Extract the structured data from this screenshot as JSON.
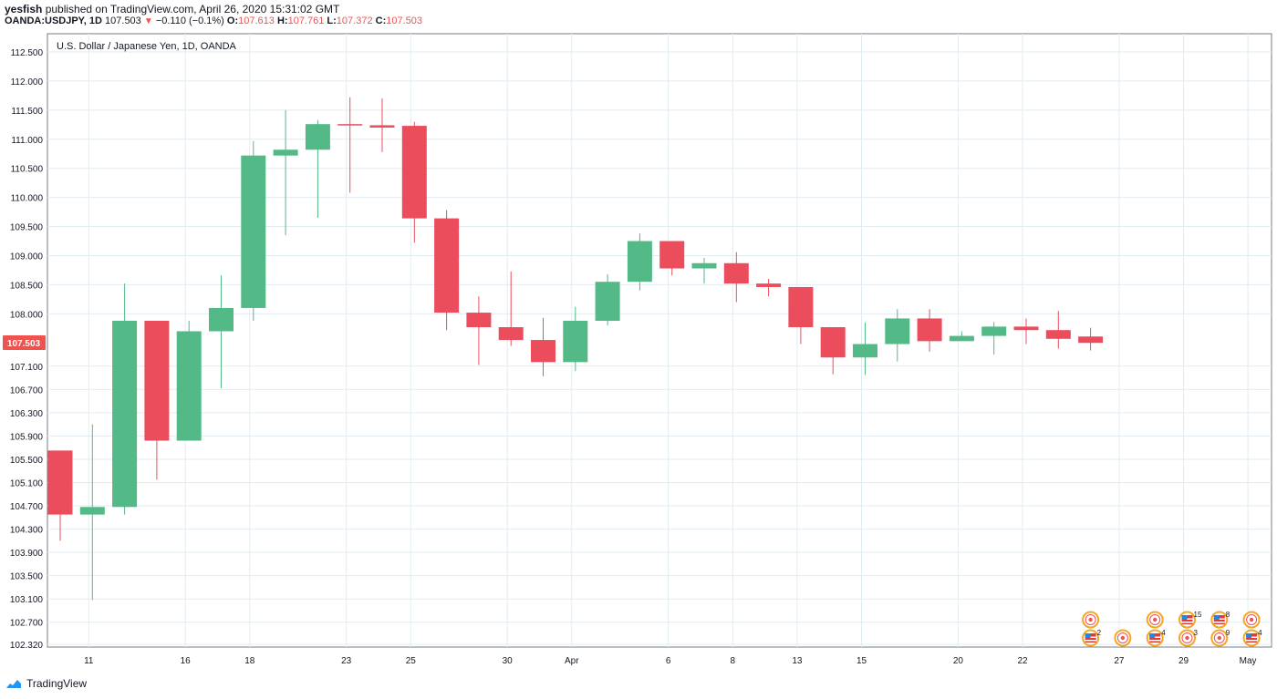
{
  "header": {
    "author": "yesfish",
    "published_text": "published on TradingView.com, April 26, 2020 15:31:02 GMT",
    "symbol": "OANDA:USDJPY, 1D",
    "last": "107.503",
    "change": "−0.110 (−0.1%)",
    "o_label": "O:",
    "o_value": "107.613",
    "h_label": "H:",
    "h_value": "107.761",
    "l_label": "L:",
    "l_value": "107.372",
    "c_label": "C:",
    "c_value": "107.503"
  },
  "footer": {
    "brand": "TradingView"
  },
  "colors": {
    "up": "#53b987",
    "down": "#eb4d5c",
    "grid": "#e1ecf2",
    "price_tag": "#ef5350",
    "event_ring": "#f5a623"
  },
  "chart_data": {
    "type": "candlestick",
    "title": "U.S. Dollar / Japanese Yen, 1D, OANDA",
    "last_price_label": "107.503",
    "ylim": [
      102.32,
      112.7
    ],
    "y_ticks": [
      "112.500",
      "112.000",
      "111.500",
      "111.000",
      "110.500",
      "110.000",
      "109.500",
      "109.000",
      "108.500",
      "108.000",
      "107.100",
      "106.700",
      "106.300",
      "105.900",
      "105.500",
      "105.100",
      "104.700",
      "104.300",
      "103.900",
      "103.500",
      "103.100",
      "102.700",
      "102.320"
    ],
    "x_ticks": [
      "11",
      "16",
      "18",
      "23",
      "25",
      "30",
      "Apr",
      "6",
      "8",
      "13",
      "15",
      "20",
      "22",
      "27",
      "29",
      "May"
    ],
    "candles": [
      {
        "date": "2020-03-10",
        "o": 105.65,
        "h": 105.65,
        "l": 104.1,
        "c": 104.55
      },
      {
        "date": "2020-03-11",
        "o": 104.55,
        "h": 106.1,
        "l": 103.08,
        "c": 104.68
      },
      {
        "date": "2020-03-12",
        "o": 104.68,
        "h": 108.52,
        "l": 104.55,
        "c": 107.88
      },
      {
        "date": "2020-03-13",
        "o": 107.88,
        "h": 107.88,
        "l": 105.15,
        "c": 105.82
      },
      {
        "date": "2020-03-16",
        "o": 105.82,
        "h": 107.88,
        "l": 105.82,
        "c": 107.7
      },
      {
        "date": "2020-03-17",
        "o": 107.7,
        "h": 108.66,
        "l": 106.72,
        "c": 108.1
      },
      {
        "date": "2020-03-18",
        "o": 108.1,
        "h": 110.97,
        "l": 107.88,
        "c": 110.72
      },
      {
        "date": "2020-03-19",
        "o": 110.72,
        "h": 111.5,
        "l": 109.35,
        "c": 110.82
      },
      {
        "date": "2020-03-20",
        "o": 110.82,
        "h": 111.33,
        "l": 109.65,
        "c": 111.26
      },
      {
        "date": "2020-03-23",
        "o": 111.26,
        "h": 111.72,
        "l": 110.08,
        "c": 111.24
      },
      {
        "date": "2020-03-24",
        "o": 111.24,
        "h": 111.7,
        "l": 110.78,
        "c": 111.2
      },
      {
        "date": "2020-03-25",
        "o": 111.23,
        "h": 111.3,
        "l": 109.22,
        "c": 109.64
      },
      {
        "date": "2020-03-26",
        "o": 109.64,
        "h": 109.78,
        "l": 107.72,
        "c": 108.02
      },
      {
        "date": "2020-03-27",
        "o": 108.02,
        "h": 108.3,
        "l": 107.12,
        "c": 107.77
      },
      {
        "date": "2020-03-30",
        "o": 107.77,
        "h": 108.73,
        "l": 107.45,
        "c": 107.55
      },
      {
        "date": "2020-03-31",
        "o": 107.55,
        "h": 107.93,
        "l": 106.93,
        "c": 107.17
      },
      {
        "date": "2020-04-01",
        "o": 107.17,
        "h": 108.12,
        "l": 107.02,
        "c": 107.88
      },
      {
        "date": "2020-04-02",
        "o": 107.88,
        "h": 108.68,
        "l": 107.8,
        "c": 108.55
      },
      {
        "date": "2020-04-03",
        "o": 108.55,
        "h": 109.38,
        "l": 108.4,
        "c": 109.25
      },
      {
        "date": "2020-04-06",
        "o": 109.25,
        "h": 109.25,
        "l": 108.66,
        "c": 108.78
      },
      {
        "date": "2020-04-07",
        "o": 108.78,
        "h": 108.96,
        "l": 108.52,
        "c": 108.87
      },
      {
        "date": "2020-04-08",
        "o": 108.87,
        "h": 109.06,
        "l": 108.2,
        "c": 108.52
      },
      {
        "date": "2020-04-09",
        "o": 108.52,
        "h": 108.6,
        "l": 108.3,
        "c": 108.46
      },
      {
        "date": "2020-04-13",
        "o": 108.46,
        "h": 108.46,
        "l": 107.48,
        "c": 107.77
      },
      {
        "date": "2020-04-14",
        "o": 107.77,
        "h": 107.77,
        "l": 106.96,
        "c": 107.25
      },
      {
        "date": "2020-04-15",
        "o": 107.25,
        "h": 107.85,
        "l": 106.95,
        "c": 107.48
      },
      {
        "date": "2020-04-16",
        "o": 107.48,
        "h": 108.08,
        "l": 107.18,
        "c": 107.92
      },
      {
        "date": "2020-04-17",
        "o": 107.92,
        "h": 108.08,
        "l": 107.35,
        "c": 107.53
      },
      {
        "date": "2020-04-20",
        "o": 107.53,
        "h": 107.7,
        "l": 107.55,
        "c": 107.62
      },
      {
        "date": "2020-04-21",
        "o": 107.62,
        "h": 107.86,
        "l": 107.3,
        "c": 107.78
      },
      {
        "date": "2020-04-22",
        "o": 107.78,
        "h": 107.92,
        "l": 107.48,
        "c": 107.72
      },
      {
        "date": "2020-04-23",
        "o": 107.72,
        "h": 108.05,
        "l": 107.4,
        "c": 107.57
      },
      {
        "date": "2020-04-24",
        "o": 107.61,
        "h": 107.76,
        "l": 107.37,
        "c": 107.5
      }
    ],
    "events": [
      {
        "date": "2020-04-24",
        "row": "top",
        "kind": "dot"
      },
      {
        "date": "2020-04-24",
        "row": "bottom",
        "kind": "flag",
        "count": "2"
      },
      {
        "date": "2020-04-27",
        "row": "bottom",
        "kind": "dot"
      },
      {
        "date": "2020-04-28",
        "row": "top",
        "kind": "dot"
      },
      {
        "date": "2020-04-28",
        "row": "bottom",
        "kind": "flag",
        "count": "4"
      },
      {
        "date": "2020-04-29",
        "row": "top",
        "kind": "flag",
        "count": "15"
      },
      {
        "date": "2020-04-29",
        "row": "bottom",
        "kind": "dot",
        "count": "3"
      },
      {
        "date": "2020-04-30",
        "row": "top",
        "kind": "flag",
        "count": "8"
      },
      {
        "date": "2020-04-30",
        "row": "bottom",
        "kind": "dot",
        "count": "9"
      },
      {
        "date": "2020-05-01",
        "row": "top",
        "kind": "dot"
      },
      {
        "date": "2020-05-01",
        "row": "bottom",
        "kind": "flag",
        "count": "4"
      }
    ]
  }
}
